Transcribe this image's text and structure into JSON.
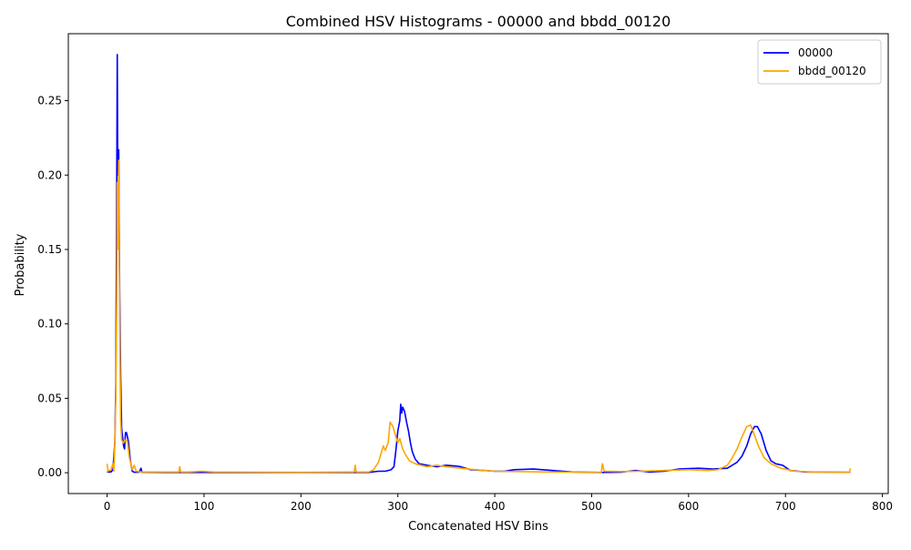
{
  "chart_data": {
    "type": "line",
    "title": "Combined HSV Histograms - 00000 and bbdd_00120",
    "xlabel": "Concatenated HSV Bins",
    "ylabel": "Probability",
    "xlim": [
      -40,
      806
    ],
    "ylim": [
      -0.014,
      0.295
    ],
    "xticks": [
      0,
      100,
      200,
      300,
      400,
      500,
      600,
      700,
      800
    ],
    "xtick_labels": [
      "0",
      "100",
      "200",
      "300",
      "400",
      "500",
      "600",
      "700",
      "800"
    ],
    "yticks": [
      0.0,
      0.05,
      0.1,
      0.15,
      0.2,
      0.25
    ],
    "ytick_labels": [
      "0.00",
      "0.05",
      "0.10",
      "0.15",
      "0.20",
      "0.25"
    ],
    "grid": false,
    "legend": "top-right",
    "series": [
      {
        "name": "00000",
        "color": "#0000ff",
        "points": [
          [
            0,
            0.0005
          ],
          [
            4,
            0.0005
          ],
          [
            6,
            0.002
          ],
          [
            8,
            0.02
          ],
          [
            9,
            0.06
          ],
          [
            10,
            0.2
          ],
          [
            10.5,
            0.281
          ],
          [
            11,
            0.2
          ],
          [
            11.5,
            0.21
          ],
          [
            12,
            0.217
          ],
          [
            13,
            0.12
          ],
          [
            14,
            0.065
          ],
          [
            15,
            0.03
          ],
          [
            17,
            0.018
          ],
          [
            18,
            0.016
          ],
          [
            19,
            0.027
          ],
          [
            20,
            0.027
          ],
          [
            22,
            0.021
          ],
          [
            24,
            0.008
          ],
          [
            26,
            0.001
          ],
          [
            28,
            0.0003
          ],
          [
            33,
            0.0003
          ],
          [
            35,
            0.003
          ],
          [
            36,
            0.0003
          ],
          [
            60,
            0.0002
          ],
          [
            100,
            0.0002
          ],
          [
            200,
            0.0002
          ],
          [
            270,
            0.0002
          ],
          [
            280,
            0.001
          ],
          [
            287,
            0.001
          ],
          [
            293,
            0.002
          ],
          [
            296,
            0.004
          ],
          [
            298,
            0.015
          ],
          [
            300,
            0.028
          ],
          [
            302,
            0.035
          ],
          [
            303,
            0.046
          ],
          [
            304,
            0.04
          ],
          [
            305,
            0.044
          ],
          [
            307,
            0.041
          ],
          [
            309,
            0.034
          ],
          [
            311,
            0.028
          ],
          [
            313,
            0.02
          ],
          [
            315,
            0.014
          ],
          [
            318,
            0.009
          ],
          [
            322,
            0.006
          ],
          [
            330,
            0.005
          ],
          [
            340,
            0.004
          ],
          [
            350,
            0.005
          ],
          [
            360,
            0.0045
          ],
          [
            365,
            0.004
          ],
          [
            375,
            0.002
          ],
          [
            390,
            0.0015
          ],
          [
            400,
            0.001
          ],
          [
            410,
            0.001
          ],
          [
            420,
            0.002
          ],
          [
            440,
            0.0025
          ],
          [
            460,
            0.0015
          ],
          [
            480,
            0.0005
          ],
          [
            510,
            0.0002
          ],
          [
            530,
            0.0003
          ],
          [
            545,
            0.0015
          ],
          [
            560,
            0.0005
          ],
          [
            575,
            0.001
          ],
          [
            590,
            0.0025
          ],
          [
            610,
            0.003
          ],
          [
            625,
            0.0025
          ],
          [
            640,
            0.003
          ],
          [
            650,
            0.007
          ],
          [
            655,
            0.011
          ],
          [
            660,
            0.018
          ],
          [
            664,
            0.026
          ],
          [
            668,
            0.031
          ],
          [
            671,
            0.031
          ],
          [
            675,
            0.026
          ],
          [
            680,
            0.015
          ],
          [
            685,
            0.008
          ],
          [
            690,
            0.006
          ],
          [
            697,
            0.005
          ],
          [
            705,
            0.0015
          ],
          [
            720,
            0.0005
          ],
          [
            767,
            0.0003
          ]
        ]
      },
      {
        "name": "bbdd_00120",
        "color": "#ffa500",
        "points": [
          [
            0,
            0.006
          ],
          [
            1,
            0.001
          ],
          [
            4,
            0.002
          ],
          [
            6,
            0.006
          ],
          [
            7,
            0.001
          ],
          [
            8,
            0.02
          ],
          [
            9,
            0.05
          ],
          [
            10,
            0.12
          ],
          [
            10.5,
            0.195
          ],
          [
            11,
            0.15
          ],
          [
            12,
            0.21
          ],
          [
            13,
            0.1
          ],
          [
            14,
            0.035
          ],
          [
            15,
            0.022
          ],
          [
            17,
            0.02
          ],
          [
            19,
            0.022
          ],
          [
            21,
            0.021
          ],
          [
            23,
            0.01
          ],
          [
            26,
            0.002
          ],
          [
            28,
            0.005
          ],
          [
            30,
            0.001
          ],
          [
            35,
            0.0005
          ],
          [
            50,
            0.0005
          ],
          [
            74,
            0.0005
          ],
          [
            75,
            0.004
          ],
          [
            76,
            0.0005
          ],
          [
            85,
            0.0005
          ],
          [
            97,
            0.001
          ],
          [
            110,
            0.0005
          ],
          [
            200,
            0.0003
          ],
          [
            255,
            0.0005
          ],
          [
            256,
            0.005
          ],
          [
            257,
            0.0005
          ],
          [
            270,
            0.0005
          ],
          [
            275,
            0.002
          ],
          [
            280,
            0.007
          ],
          [
            285,
            0.018
          ],
          [
            287,
            0.015
          ],
          [
            290,
            0.02
          ],
          [
            292,
            0.034
          ],
          [
            295,
            0.031
          ],
          [
            298,
            0.024
          ],
          [
            300,
            0.02
          ],
          [
            302,
            0.023
          ],
          [
            305,
            0.016
          ],
          [
            308,
            0.012
          ],
          [
            312,
            0.008
          ],
          [
            318,
            0.006
          ],
          [
            330,
            0.004
          ],
          [
            340,
            0.005
          ],
          [
            350,
            0.004
          ],
          [
            365,
            0.003
          ],
          [
            380,
            0.002
          ],
          [
            400,
            0.001
          ],
          [
            450,
            0.0005
          ],
          [
            510,
            0.0003
          ],
          [
            511,
            0.006
          ],
          [
            513,
            0.001
          ],
          [
            530,
            0.0008
          ],
          [
            550,
            0.001
          ],
          [
            600,
            0.002
          ],
          [
            620,
            0.0015
          ],
          [
            630,
            0.002
          ],
          [
            640,
            0.005
          ],
          [
            645,
            0.01
          ],
          [
            650,
            0.016
          ],
          [
            655,
            0.024
          ],
          [
            660,
            0.031
          ],
          [
            664,
            0.032
          ],
          [
            667,
            0.027
          ],
          [
            672,
            0.018
          ],
          [
            678,
            0.01
          ],
          [
            685,
            0.006
          ],
          [
            695,
            0.003
          ],
          [
            710,
            0.001
          ],
          [
            730,
            0.0005
          ],
          [
            766,
            0.0003
          ],
          [
            767,
            0.003
          ]
        ]
      }
    ]
  }
}
